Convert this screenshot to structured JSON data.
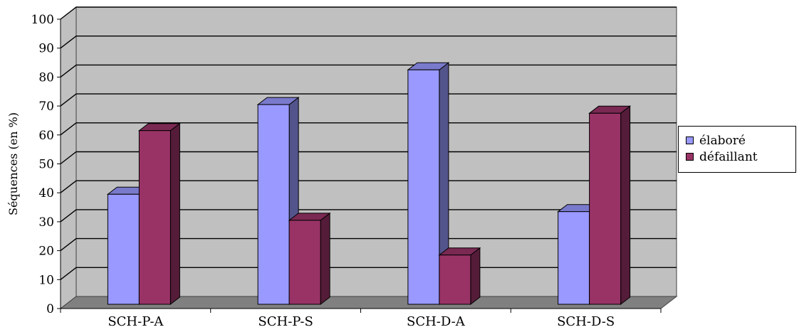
{
  "chart_data": {
    "type": "bar",
    "categories": [
      "SCH-P-A",
      "SCH-P-S",
      "SCH-D-A",
      "SCH-D-S"
    ],
    "series": [
      {
        "name": "élaboré",
        "values": [
          39,
          70,
          82,
          33
        ],
        "color": "#9999ff"
      },
      {
        "name": "défaillant",
        "values": [
          61,
          30,
          18,
          67
        ],
        "color": "#993366"
      }
    ],
    "ylabel": "Séquences (en %)",
    "ylim": [
      0,
      100
    ],
    "yticks": [
      0,
      10,
      20,
      30,
      40,
      50,
      60,
      70,
      80,
      90,
      100
    ],
    "grid": true,
    "legend_position": "right",
    "colors": {
      "wall": "#c0c0c0",
      "floor": "#808080",
      "grid": "#000000"
    }
  }
}
